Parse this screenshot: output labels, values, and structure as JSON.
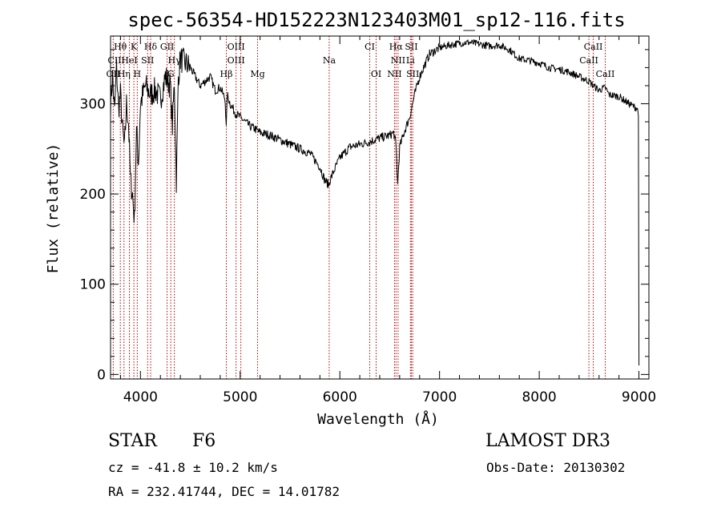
{
  "chart_data": {
    "type": "line",
    "title": "spec-56354-HD152223N123403M01_sp12-116.fits",
    "xlabel": "Wavelength (Å)",
    "ylabel": "Flux (relative)",
    "xlim": [
      3700,
      9100
    ],
    "ylim": [
      -5,
      375
    ],
    "xticks": [
      4000,
      5000,
      6000,
      7000,
      8000,
      9000
    ],
    "yticks": [
      0,
      100,
      200,
      300
    ],
    "series": [
      {
        "name": "flux",
        "x": [
          3700,
          3720,
          3740,
          3760,
          3780,
          3800,
          3820,
          3840,
          3860,
          3880,
          3900,
          3920,
          3940,
          3960,
          3980,
          4000,
          4050,
          4100,
          4150,
          4200,
          4250,
          4300,
          4320,
          4340,
          4360,
          4380,
          4400,
          4450,
          4500,
          4550,
          4600,
          4650,
          4700,
          4750,
          4800,
          4850,
          4861,
          4870,
          4900,
          4950,
          5000,
          5050,
          5100,
          5150,
          5200,
          5300,
          5400,
          5500,
          5600,
          5700,
          5800,
          5850,
          5890,
          5900,
          5950,
          6000,
          6100,
          6200,
          6300,
          6400,
          6500,
          6540,
          6563,
          6580,
          6600,
          6650,
          6700,
          6750,
          6800,
          6900,
          7000,
          7100,
          7200,
          7300,
          7400,
          7500,
          7600,
          7700,
          7800,
          7900,
          8000,
          8100,
          8200,
          8300,
          8400,
          8498,
          8542,
          8600,
          8662,
          8700,
          8800,
          8900,
          8980,
          8995,
          9000
        ],
        "values": [
          300,
          330,
          290,
          340,
          295,
          310,
          270,
          250,
          300,
          280,
          215,
          200,
          170,
          270,
          235,
          300,
          320,
          310,
          315,
          305,
          330,
          320,
          275,
          325,
          215,
          330,
          350,
          345,
          340,
          330,
          320,
          325,
          330,
          315,
          318,
          305,
          270,
          310,
          300,
          290,
          285,
          280,
          275,
          272,
          268,
          265,
          260,
          255,
          250,
          245,
          230,
          215,
          210,
          215,
          228,
          240,
          252,
          255,
          258,
          262,
          265,
          268,
          255,
          210,
          252,
          270,
          285,
          310,
          330,
          355,
          362,
          365,
          367,
          368,
          366,
          364,
          365,
          360,
          350,
          348,
          345,
          340,
          338,
          335,
          330,
          325,
          320,
          315,
          318,
          310,
          308,
          300,
          295,
          290,
          10
        ]
      }
    ],
    "line_labels": [
      {
        "name": "Hθ",
        "x": 3798,
        "row": 0
      },
      {
        "name": "K",
        "x": 3934,
        "row": 0
      },
      {
        "name": "Hδ",
        "x": 4102,
        "row": 0
      },
      {
        "name": "GII",
        "x": 4267,
        "row": 0
      },
      {
        "name": "OIII",
        "x": 4959,
        "row": 0
      },
      {
        "name": "CI",
        "x": 6300,
        "row": 0
      },
      {
        "name": "Hα",
        "x": 6563,
        "row": 0
      },
      {
        "name": "SII",
        "x": 6717,
        "row": 0
      },
      {
        "name": "CaII",
        "x": 8542,
        "row": 0
      },
      {
        "name": "CII",
        "x": 3740,
        "row": 1
      },
      {
        "name": "HeI",
        "x": 3889,
        "row": 1
      },
      {
        "name": "SII",
        "x": 4072,
        "row": 1
      },
      {
        "name": "Hγ",
        "x": 4340,
        "row": 1
      },
      {
        "name": "OIII",
        "x": 4959,
        "row": 1
      },
      {
        "name": "Na",
        "x": 5893,
        "row": 1
      },
      {
        "name": "NII",
        "x": 6584,
        "row": 1
      },
      {
        "name": "Li",
        "x": 6708,
        "row": 1
      },
      {
        "name": "CaII",
        "x": 8498,
        "row": 1
      },
      {
        "name": "OII",
        "x": 3727,
        "row": 2
      },
      {
        "name": "Hη",
        "x": 3835,
        "row": 2
      },
      {
        "name": "H",
        "x": 3968,
        "row": 2
      },
      {
        "name": "G",
        "x": 4304,
        "row": 2
      },
      {
        "name": "Hβ",
        "x": 4861,
        "row": 2
      },
      {
        "name": "Mg",
        "x": 5175,
        "row": 2
      },
      {
        "name": "OI",
        "x": 6364,
        "row": 2
      },
      {
        "name": "NII",
        "x": 6548,
        "row": 2
      },
      {
        "name": "SII",
        "x": 6731,
        "row": 2
      },
      {
        "name": "CaII",
        "x": 8662,
        "row": 2
      }
    ],
    "marker_lines": [
      3727,
      3798,
      3835,
      3889,
      3934,
      3968,
      4072,
      4102,
      4267,
      4304,
      4340,
      4861,
      4959,
      5007,
      5175,
      5893,
      6300,
      6364,
      6548,
      6563,
      6584,
      6708,
      6717,
      6731,
      8498,
      8542,
      8662
    ]
  },
  "info": {
    "object_class": "STAR",
    "subclass": "F6",
    "survey": "LAMOST DR3",
    "redshift": "cz = -41.8 ± 10.2 km/s",
    "obs_date": "Obs-Date: 20130302",
    "coords": "RA = 232.41744, DEC =  14.01782"
  }
}
